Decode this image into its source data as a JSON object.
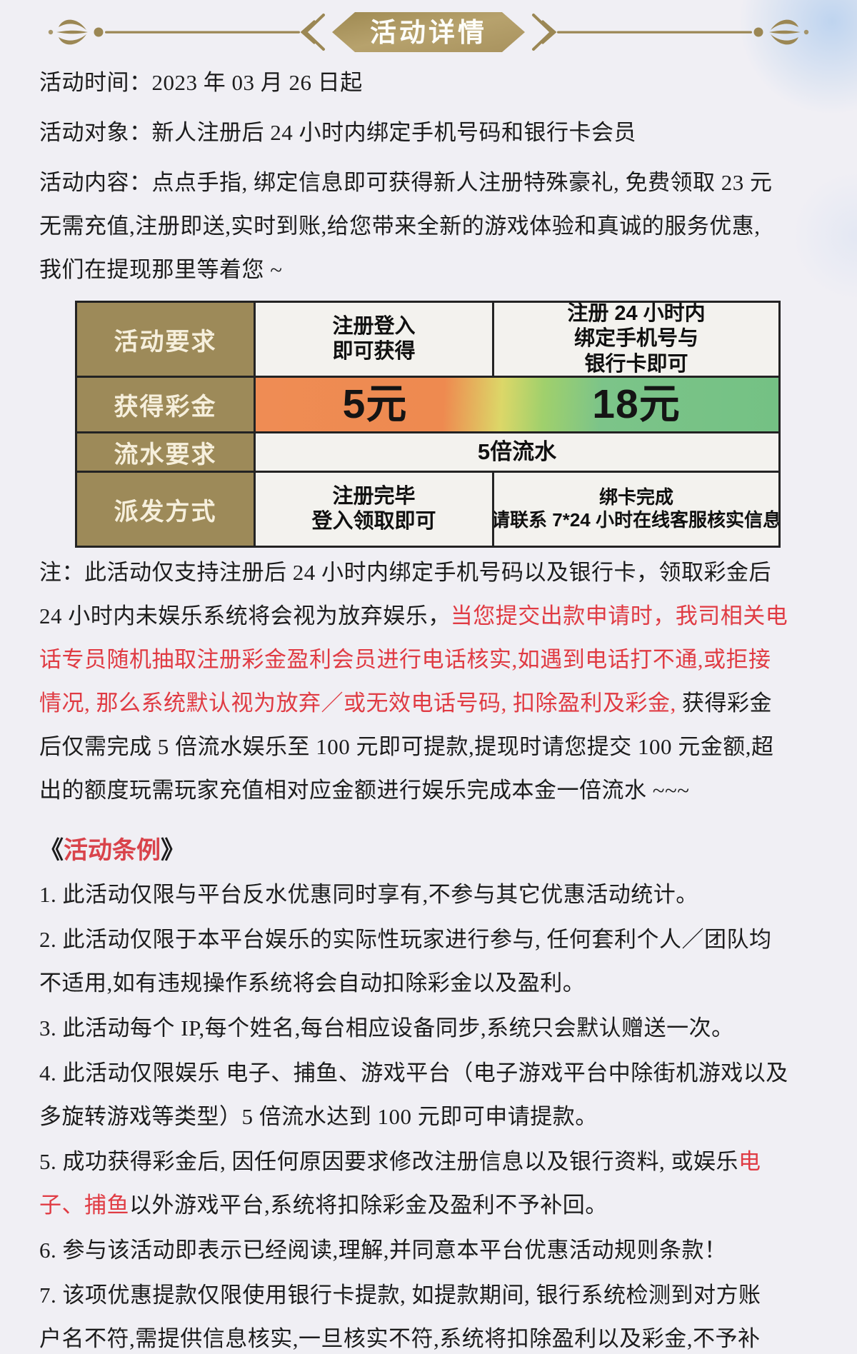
{
  "header": {
    "title": "活动详情"
  },
  "intro": {
    "paragraphs": [
      {
        "lines": [
          [
            {
              "t": "活动时间：2023 年 03 月 26 日起"
            }
          ]
        ]
      },
      {
        "lines": [
          [
            {
              "t": "活动对象：新人注册后 24 小时内绑定手机号码和银行卡会员"
            }
          ]
        ]
      },
      {
        "lines": [
          [
            {
              "t": "活动内容：点点手指, 绑定信息即可获得新人注册特殊豪礼, 免费领取 23 元"
            }
          ],
          [
            {
              "t": "无需充值,注册即送,实时到账,给您带来全新的游戏体验和真诚的服务优惠,"
            }
          ],
          [
            {
              "t": "我们在提现那里等着您 ~"
            }
          ]
        ]
      }
    ]
  },
  "table": {
    "row1": {
      "header": "活动要求",
      "col2": [
        "注册登入",
        "即可获得"
      ],
      "col3": [
        "注册 24 小时内",
        "绑定手机号与",
        "银行卡即可"
      ]
    },
    "row2": {
      "header": "获得彩金",
      "col2": "5元",
      "col3": "18元"
    },
    "row3": {
      "header": "流水要求",
      "span": "5倍流水"
    },
    "row4": {
      "header": "派发方式",
      "col2": [
        "注册完毕",
        "登入领取即可"
      ],
      "col3": [
        "绑卡完成",
        "请联系 7*24 小时在线客服核实信息"
      ]
    }
  },
  "note": {
    "paragraphs": [
      {
        "lines": [
          [
            {
              "t": "注：此活动仅支持注册后 24 小时内绑定手机号码以及银行卡，领取彩金后"
            }
          ],
          [
            {
              "t": "24 小时内未娱乐系统将会视为放弃娱乐，"
            },
            {
              "t": "当您提交出款申请时，我司相关电",
              "red": true
            }
          ],
          [
            {
              "t": "话专员随机抽取注册彩金盈利会员进行电话核实,如遇到电话打不通,或拒接",
              "red": true
            }
          ],
          [
            {
              "t": "情况, 那么系统默认视为放弃／或无效电话号码, 扣除盈利及彩金, ",
              "red": true
            },
            {
              "t": "获得彩金"
            }
          ],
          [
            {
              "t": "后仅需完成 5 倍流水娱乐至 100 元即可提款,提现时请您提交 100 元金额,超"
            }
          ],
          [
            {
              "t": "出的额度玩需玩家充值相对应金额进行娱乐完成本金一倍流水 ~~~"
            }
          ]
        ]
      }
    ]
  },
  "rules": {
    "heading": [
      {
        "t": "《"
      },
      {
        "t": "活动条例",
        "red": true
      },
      {
        "t": "》"
      }
    ],
    "items": [
      {
        "lines": [
          [
            {
              "t": "1.  此活动仅限与平台反水优惠同时享有,不参与其它优惠活动统计。"
            }
          ]
        ]
      },
      {
        "lines": [
          [
            {
              "t": "2.  此活动仅限于本平台娱乐的实际性玩家进行参与, 任何套利个人／团队均"
            }
          ],
          [
            {
              "t": "不适用,如有违规操作系统将会自动扣除彩金以及盈利。"
            }
          ]
        ]
      },
      {
        "lines": [
          [
            {
              "t": "3.  此活动每个 IP,每个姓名,每台相应设备同步,系统只会默认赠送一次。"
            }
          ]
        ]
      },
      {
        "lines": [
          [
            {
              "t": "4.  此活动仅限娱乐 电子、捕鱼、游戏平台（电子游戏平台中除街机游戏以及"
            }
          ],
          [
            {
              "t": "多旋转游戏等类型）5 倍流水达到 100 元即可申请提款。"
            }
          ]
        ]
      },
      {
        "lines": [
          [
            {
              "t": "5.  成功获得彩金后, 因任何原因要求修改注册信息以及银行资料, 或娱乐"
            },
            {
              "t": "电",
              "red": true
            }
          ],
          [
            {
              "t": "子、捕鱼",
              "red": true
            },
            {
              "t": "以外游戏平台,系统将扣除彩金及盈利不予补回。"
            }
          ]
        ]
      },
      {
        "lines": [
          [
            {
              "t": "6.  参与该活动即表示已经阅读,理解,并同意本平台优惠活动规则条款！"
            }
          ]
        ]
      },
      {
        "lines": [
          [
            {
              "t": "7.  该项优惠提款仅限使用银行卡提款, 如提款期间, 银行系统检测到对方账"
            }
          ],
          [
            {
              "t": "户名不符,需提供信息核实,一旦核实不符,系统将扣除盈利以及彩金,不予补"
            }
          ]
        ]
      }
    ]
  },
  "colors": {
    "accent_red": "#e03b43",
    "gold": "#9b8754",
    "table_header_bg": "#9d8a59",
    "gradient_left": "#ef8c54",
    "gradient_right": "#74c184",
    "page_bg": "#f0eff4"
  }
}
